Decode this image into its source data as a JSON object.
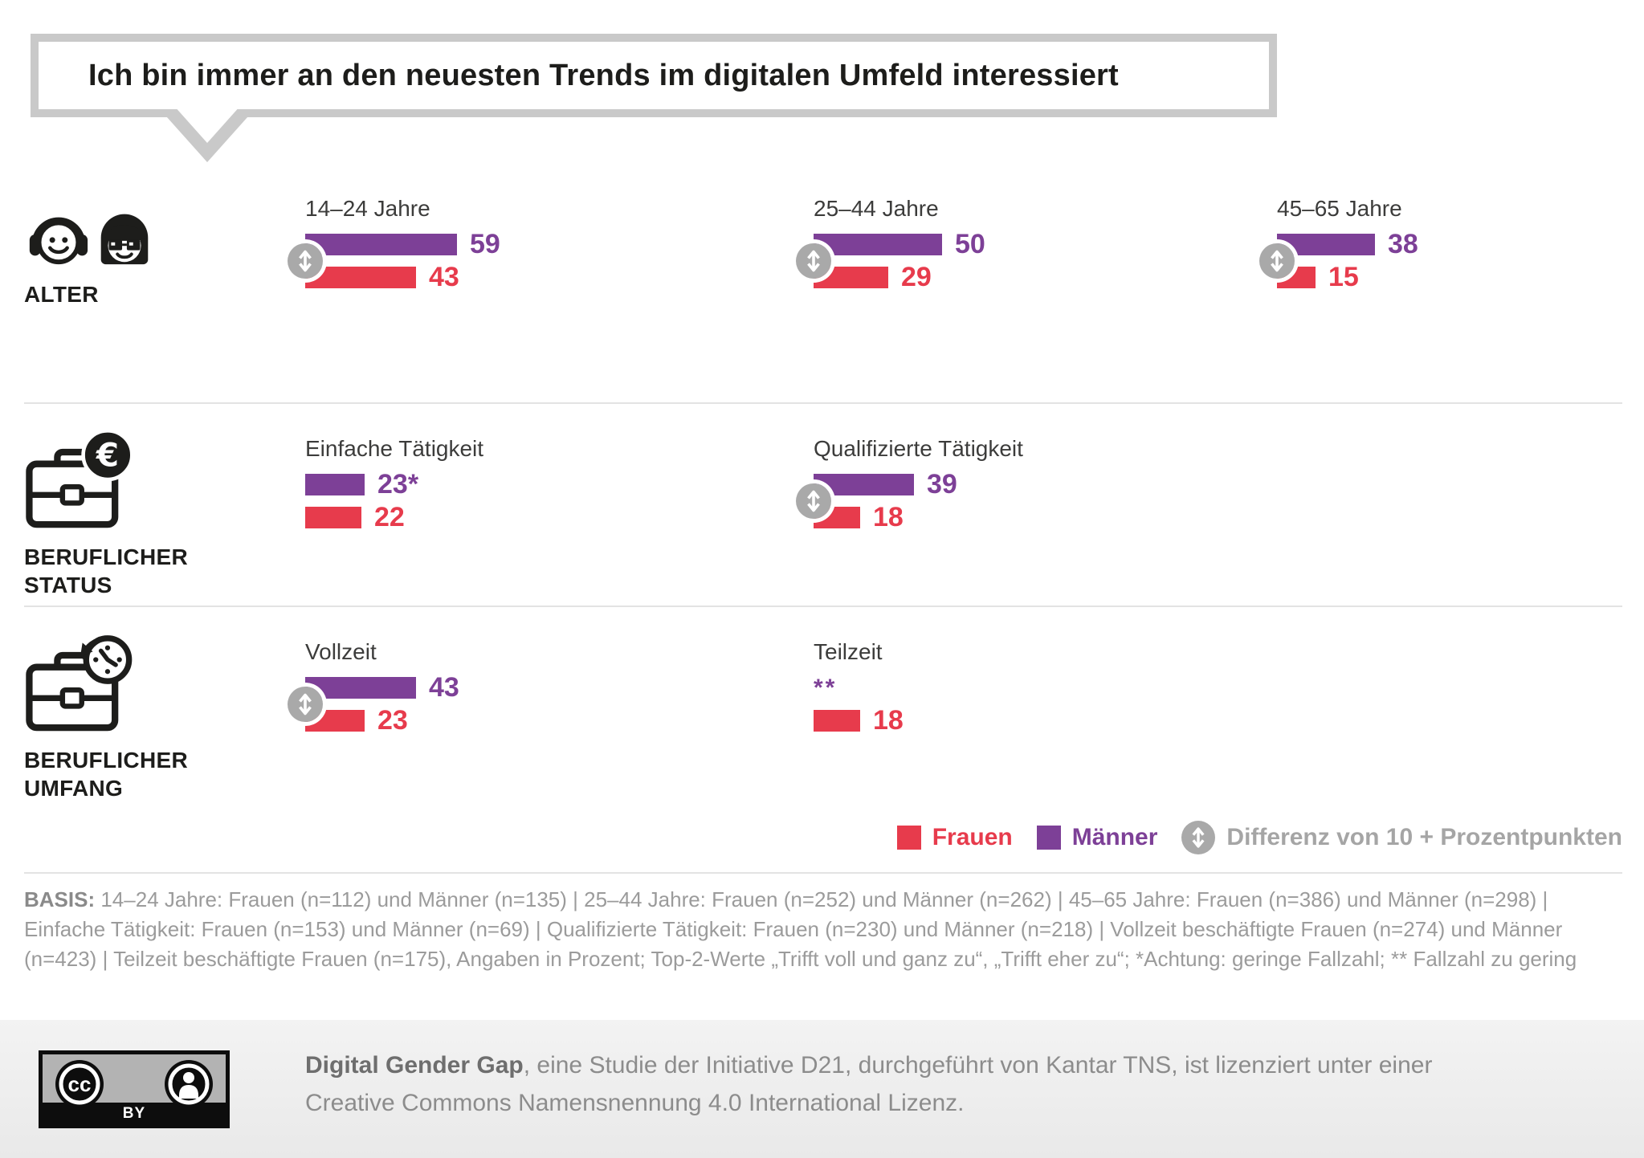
{
  "title": "Ich bin immer an den neuesten Trends im digitalen Umfeld interessiert",
  "colors": {
    "frauen_red": "#e73b4c",
    "maenner_purple": "#7d4097",
    "diff_gray": "#a9a9a9",
    "border_gray": "#c9c9c9"
  },
  "chart_data": {
    "type": "bar",
    "orientation": "horizontal",
    "unit": "Prozent",
    "title": "Ich bin immer an den neuesten Trends im digitalen Umfeld interessiert",
    "series_names": [
      "Männer",
      "Frauen"
    ],
    "xlim": [
      0,
      100
    ],
    "rows": [
      {
        "category": "ALTER",
        "icon": "people-icon",
        "groups": [
          {
            "label": "14–24 Jahre",
            "maenner": 59,
            "maenner_display": "59",
            "frauen": 43,
            "frauen_display": "43",
            "diff_badge": true
          },
          {
            "label": "25–44 Jahre",
            "maenner": 50,
            "maenner_display": "50",
            "frauen": 29,
            "frauen_display": "29",
            "diff_badge": true
          },
          {
            "label": "45–65 Jahre",
            "maenner": 38,
            "maenner_display": "38",
            "frauen": 15,
            "frauen_display": "15",
            "diff_badge": true
          }
        ]
      },
      {
        "category": "BERUFLICHER STATUS",
        "icon": "briefcase-euro-icon",
        "groups": [
          {
            "label": "Einfache Tätigkeit",
            "maenner": 23,
            "maenner_display": "23*",
            "frauen": 22,
            "frauen_display": "22",
            "diff_badge": false
          },
          {
            "label": "Qualifizierte Tätigkeit",
            "maenner": 39,
            "maenner_display": "39",
            "frauen": 18,
            "frauen_display": "18",
            "diff_badge": true
          }
        ]
      },
      {
        "category": "BERUFLICHER UMFANG",
        "icon": "briefcase-clock-icon",
        "groups": [
          {
            "label": "Vollzeit",
            "maenner": 43,
            "maenner_display": "43",
            "frauen": 23,
            "frauen_display": "23",
            "diff_badge": true
          },
          {
            "label": "Teilzeit",
            "maenner": null,
            "maenner_display": "**",
            "frauen": 18,
            "frauen_display": "18",
            "diff_badge": false
          }
        ]
      }
    ]
  },
  "legend": {
    "items": [
      {
        "label": "Frauen",
        "swatch": "square-red"
      },
      {
        "label": "Männer",
        "swatch": "square-purple"
      },
      {
        "label": "Differenz von 10 + Prozentpunkten",
        "swatch": "diff-badge"
      }
    ]
  },
  "basis": {
    "prefix": "BASIS:",
    "text": " 14–24 Jahre: Frauen (n=112) und Männer (n=135) | 25–44 Jahre: Frauen (n=252) und Männer (n=262) | 45–65 Jahre: Frauen (n=386) und Männer (n=298) | Einfache Tätigkeit: Frauen (n=153) und Männer (n=69) | Qualifizierte Tätigkeit: Frauen (n=230) und Männer (n=218) | Vollzeit beschäftigte Frauen (n=274) und Männer (n=423) | Teilzeit beschäftigte Frauen (n=175), Angaben in Prozent; Top-2-Werte „Trifft voll und ganz zu“, „Trifft eher zu“; *Achtung: geringe Fallzahl; ** Fallzahl zu gering"
  },
  "footer": {
    "badge_label": "BY",
    "bold": "Digital Gender Gap",
    "line1_rest": ", eine Studie der Initiative D21, durchgeführt von Kantar TNS, ist lizenziert unter einer",
    "line2": "Creative Commons Namensnennung 4.0 International Lizenz."
  }
}
